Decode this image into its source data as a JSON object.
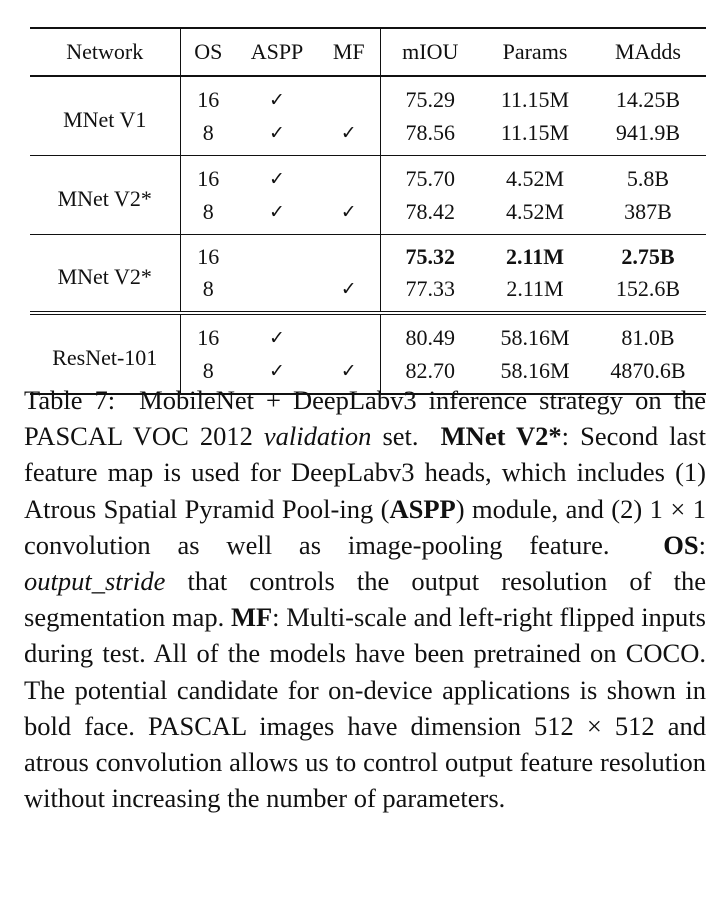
{
  "table": {
    "columns": [
      "Network",
      "OS",
      "ASPP",
      "MF",
      "mIOU",
      "Params",
      "MAdds"
    ],
    "check_glyph": "✓",
    "groups": [
      {
        "network": "MNet V1",
        "rows": [
          {
            "os": "16",
            "aspp": true,
            "mf": false,
            "miou": "75.29",
            "params": "11.15M",
            "madds": "14.25B",
            "bold": false
          },
          {
            "os": "8",
            "aspp": true,
            "mf": true,
            "miou": "78.56",
            "params": "11.15M",
            "madds": "941.9B",
            "bold": false
          }
        ]
      },
      {
        "network": "MNet V2*",
        "rows": [
          {
            "os": "16",
            "aspp": true,
            "mf": false,
            "miou": "75.70",
            "params": "4.52M",
            "madds": "5.8B",
            "bold": false
          },
          {
            "os": "8",
            "aspp": true,
            "mf": true,
            "miou": "78.42",
            "params": "4.52M",
            "madds": "387B",
            "bold": false
          }
        ]
      },
      {
        "network": "MNet V2*",
        "rows": [
          {
            "os": "16",
            "aspp": false,
            "mf": false,
            "miou": "75.32",
            "params": "2.11M",
            "madds": "2.75B",
            "bold": true
          },
          {
            "os": "8",
            "aspp": false,
            "mf": true,
            "miou": "77.33",
            "params": "2.11M",
            "madds": "152.6B",
            "bold": false
          }
        ]
      },
      {
        "network": "ResNet-101",
        "rows": [
          {
            "os": "16",
            "aspp": true,
            "mf": false,
            "miou": "80.49",
            "params": "58.16M",
            "madds": "81.0B",
            "bold": false
          },
          {
            "os": "8",
            "aspp": true,
            "mf": true,
            "miou": "82.70",
            "params": "58.16M",
            "madds": "4870.6B",
            "bold": false
          }
        ]
      }
    ]
  },
  "caption": {
    "label": "Table 7:",
    "intro_a": "MobileNet + DeepLabv3 inference strategy on the PASCAL VOC 2012",
    "intro_em": "validation",
    "intro_b": "set.",
    "mnet_term": "MNet V2*",
    "mnet_a": ": Second last feature map is used for DeepLabv3 heads, which includes (1) Atrous Spatial Pyramid Pool-­ing (",
    "aspp_term": "ASPP",
    "mnet_b": ") module, and (2) 1 × 1 convolution as well as image-pooling feature.",
    "os_term": "OS",
    "os_colon": ":",
    "os_em": "output_stride",
    "os_b": "that con­trols the output resolution of the segmentation map.",
    "mf_term": "MF",
    "mf_b": ": Multi-scale and left-right flipped inputs during test. All of the models have been pretrained on COCO. The po­tential candidate for on-device applications is shown in bold face. PASCAL images have dimension 512 × 512 and atrous convolution allows us to control output fea­ture resolution without increasing the number of param­eters."
  }
}
